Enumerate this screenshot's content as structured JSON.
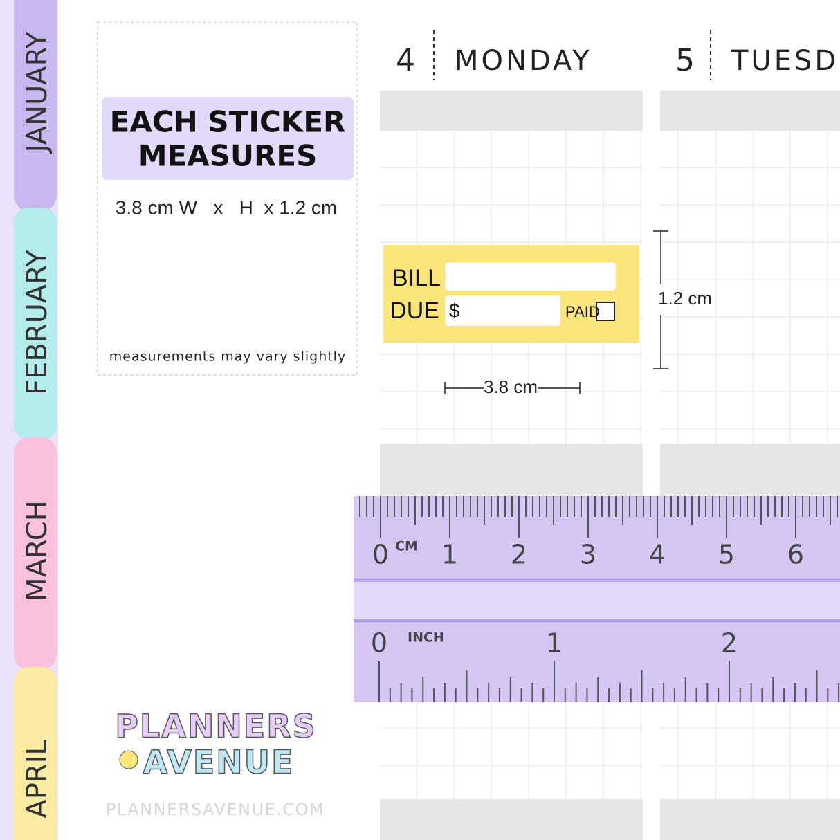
{
  "tabs": [
    "JANUARY",
    "FEBRUARY",
    "MARCH",
    "APRIL"
  ],
  "info": {
    "title_line1": "EACH STICKER",
    "title_line2": "MEASURES",
    "size": "3.8 cm W   x   H  x 1.2 cm",
    "note": "measurements may vary slightly"
  },
  "days": [
    {
      "number": "4",
      "name": "MONDAY"
    },
    {
      "number": "5",
      "name": "TUESD"
    }
  ],
  "sticker": {
    "bill": "BILL",
    "due": "DUE",
    "dollar": "$",
    "paid": "PAID"
  },
  "dimensions": {
    "height": "1.2 cm",
    "width": "3.8 cm"
  },
  "ruler": {
    "cm_unit": "CM",
    "cm_labels": [
      0,
      1,
      2,
      3,
      4,
      5,
      6
    ],
    "inch_unit": "INCH",
    "inch_labels": [
      0,
      1,
      2
    ]
  },
  "logo": {
    "line1": "PLANNERS",
    "line2": "AVENUE",
    "website": "PLANNERSAVENUE.COM"
  }
}
